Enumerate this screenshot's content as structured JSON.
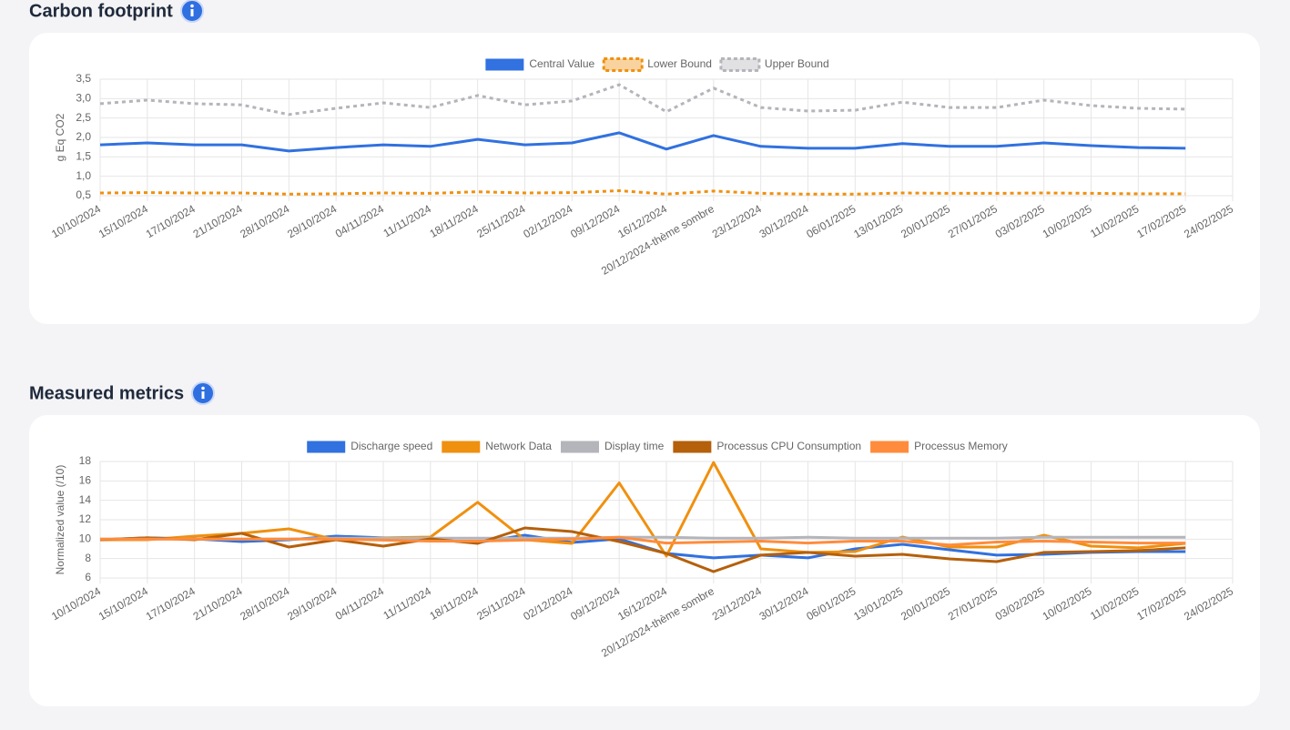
{
  "chart_data": [
    {
      "type": "line",
      "title": "Carbon footprint",
      "ylabel": "g Eq CO2",
      "categories": [
        "10/10/2024",
        "15/10/2024",
        "17/10/2024",
        "21/10/2024",
        "28/10/2024",
        "29/10/2024",
        "04/11/2024",
        "11/11/2024",
        "18/11/2024",
        "25/11/2024",
        "02/12/2024",
        "09/12/2024",
        "16/12/2024",
        "20/12/2024-thème sombre",
        "23/12/2024",
        "30/12/2024",
        "06/01/2025",
        "13/01/2025",
        "20/01/2025",
        "27/01/2025",
        "03/02/2025",
        "10/02/2025",
        "11/02/2025",
        "17/02/2025",
        "24/02/2025"
      ],
      "ylim": [
        0.5,
        3.5
      ],
      "yticks": [
        {
          "value": 0.5,
          "label": "0,5"
        },
        {
          "value": 1,
          "label": "1,0"
        },
        {
          "value": 1.5,
          "label": "1,5"
        },
        {
          "value": 2,
          "label": "2,0"
        },
        {
          "value": 2.5,
          "label": "2,5"
        },
        {
          "value": 3,
          "label": "3,0"
        },
        {
          "value": 3.5,
          "label": "3,5"
        }
      ],
      "grid": true,
      "series": [
        {
          "name": "Central Value",
          "color": "#3171e0",
          "dashed": false,
          "values": [
            1.81,
            1.86,
            1.81,
            1.81,
            1.65,
            1.74,
            1.81,
            1.77,
            1.95,
            1.81,
            1.86,
            2.12,
            1.7,
            2.05,
            1.77,
            1.72,
            1.72,
            1.84,
            1.77,
            1.77,
            1.86,
            1.79,
            1.74,
            1.72,
            null
          ]
        },
        {
          "name": "Lower Bound",
          "color": "#f0900f",
          "dashed": true,
          "values": [
            0.57,
            0.58,
            0.57,
            0.57,
            0.54,
            0.55,
            0.57,
            0.56,
            0.6,
            0.57,
            0.58,
            0.63,
            0.54,
            0.62,
            0.56,
            0.54,
            0.54,
            0.57,
            0.56,
            0.56,
            0.57,
            0.56,
            0.55,
            0.55,
            null
          ]
        },
        {
          "name": "Upper Bound",
          "color": "#b4b4bb",
          "dashed": true,
          "values": [
            2.87,
            2.96,
            2.87,
            2.84,
            2.59,
            2.75,
            2.89,
            2.77,
            3.08,
            2.84,
            2.94,
            3.36,
            2.66,
            3.27,
            2.77,
            2.68,
            2.7,
            2.91,
            2.77,
            2.77,
            2.96,
            2.82,
            2.75,
            2.73,
            null
          ]
        }
      ]
    },
    {
      "type": "line",
      "title": "Measured metrics",
      "ylabel": "Normalized value (/10)",
      "categories": [
        "10/10/2024",
        "15/10/2024",
        "17/10/2024",
        "21/10/2024",
        "28/10/2024",
        "29/10/2024",
        "04/11/2024",
        "11/11/2024",
        "18/11/2024",
        "25/11/2024",
        "02/12/2024",
        "09/12/2024",
        "16/12/2024",
        "20/12/2024-thème sombre",
        "23/12/2024",
        "30/12/2024",
        "06/01/2025",
        "13/01/2025",
        "20/01/2025",
        "27/01/2025",
        "03/02/2025",
        "10/02/2025",
        "11/02/2025",
        "17/02/2025",
        "24/02/2025"
      ],
      "ylim": [
        6,
        18
      ],
      "yticks": [
        6,
        8,
        10,
        12,
        14,
        16,
        18
      ],
      "grid": true,
      "series": [
        {
          "name": "Discharge speed",
          "color": "#3171e0",
          "dashed": false,
          "values": [
            9.94,
            10.13,
            10.03,
            9.75,
            9.94,
            10.31,
            10.13,
            9.94,
            9.66,
            10.41,
            9.66,
            10.03,
            8.53,
            8.07,
            8.35,
            8.07,
            9.0,
            9.47,
            8.91,
            8.35,
            8.44,
            8.63,
            8.72,
            8.72,
            null
          ]
        },
        {
          "name": "Network Data",
          "color": "#f0900f",
          "dashed": false,
          "values": [
            9.94,
            9.94,
            10.31,
            10.6,
            11.06,
            9.94,
            10.13,
            10.22,
            13.8,
            9.94,
            9.56,
            15.8,
            8.25,
            17.9,
            9.0,
            8.63,
            8.72,
            10.22,
            9.19,
            9.19,
            10.41,
            9.28,
            9.1,
            9.56,
            null
          ]
        },
        {
          "name": "Display time",
          "color": "#b4b4bb",
          "dashed": false,
          "values": [
            10,
            10,
            10,
            10,
            10,
            10.1,
            10.1,
            10.1,
            10.1,
            10.1,
            10.1,
            10.2,
            10.2,
            10.1,
            10.1,
            10.2,
            10.1,
            10.1,
            10.1,
            10.1,
            10.2,
            10.2,
            10.2,
            10.2,
            null
          ]
        },
        {
          "name": "Processus CPU Consumption",
          "color": "#b5600b",
          "dashed": false,
          "values": [
            9.94,
            10.13,
            9.94,
            10.6,
            9.19,
            9.94,
            9.28,
            10.03,
            9.56,
            11.16,
            10.78,
            9.75,
            8.53,
            6.66,
            8.35,
            8.63,
            8.25,
            8.44,
            7.97,
            7.69,
            8.63,
            8.72,
            8.82,
            9.1,
            null
          ]
        },
        {
          "name": "Processus Memory",
          "color": "#ff8c3c",
          "dashed": false,
          "values": [
            10,
            10,
            10,
            10,
            10,
            10,
            9.9,
            9.8,
            9.8,
            9.9,
            10,
            10.2,
            9.6,
            9.7,
            9.8,
            9.6,
            9.8,
            9.8,
            9.4,
            9.7,
            9.8,
            9.7,
            9.6,
            9.6,
            null
          ]
        }
      ]
    }
  ]
}
